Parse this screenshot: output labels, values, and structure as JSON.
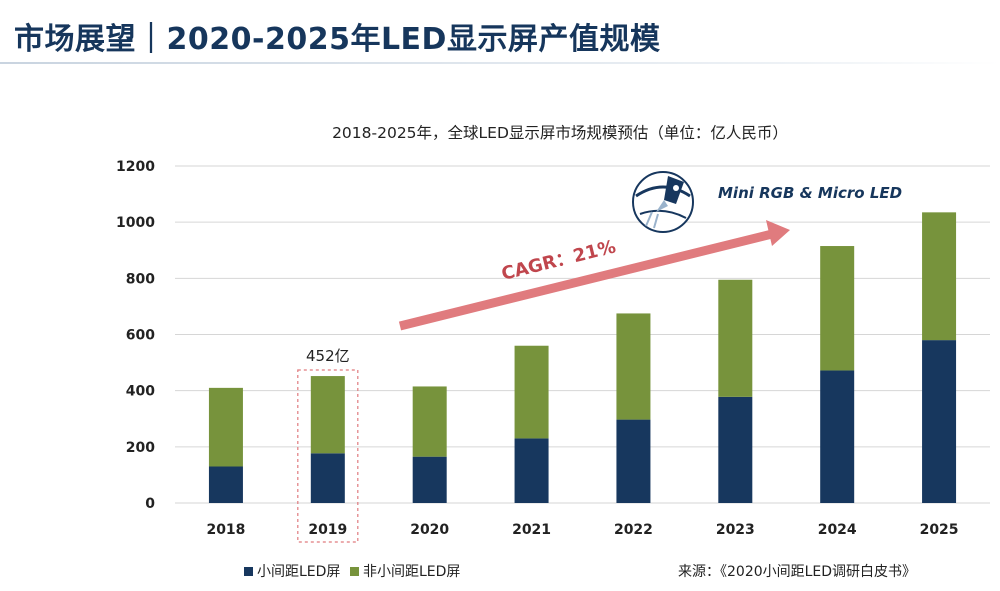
{
  "header": {
    "title": "市场展望｜2020-2025年LED显示屏产值规模"
  },
  "chart_data": {
    "type": "bar",
    "stacked": true,
    "title": "2018-2025年，全球LED显示屏市场规模预估（单位：亿人民币）",
    "categories": [
      "2018",
      "2019",
      "2020",
      "2021",
      "2022",
      "2023",
      "2024",
      "2025"
    ],
    "series": [
      {
        "name": "小间距LED屏",
        "color": "#17375e",
        "values": [
          130,
          177,
          165,
          230,
          297,
          378,
          472,
          580
        ]
      },
      {
        "name": "非小间距LED屏",
        "color": "#77933c",
        "values": [
          280,
          275,
          250,
          330,
          378,
          417,
          443,
          455
        ]
      }
    ],
    "yticks": [
      0,
      200,
      400,
      600,
      800,
      1000,
      1200
    ],
    "ylim": [
      0,
      1200
    ],
    "xlabel": "",
    "ylabel": "",
    "grid": true,
    "legend_position": "bottom-left",
    "annotations": {
      "highlight_label": "452亿",
      "highlight_category": "2019",
      "cagr_label": "CAGR：21%",
      "tech_label": "Mini RGB & Micro LED"
    },
    "source": "来源：《2020小间距LED调研白皮书》"
  },
  "colors": {
    "title": "#16365c",
    "bar_dark": "#17375e",
    "bar_green": "#77933c",
    "arrow": "#e07b7e",
    "highlight_box": "#e07b7e"
  },
  "icons": {
    "tech_badge": "rocket-globe-icon"
  }
}
